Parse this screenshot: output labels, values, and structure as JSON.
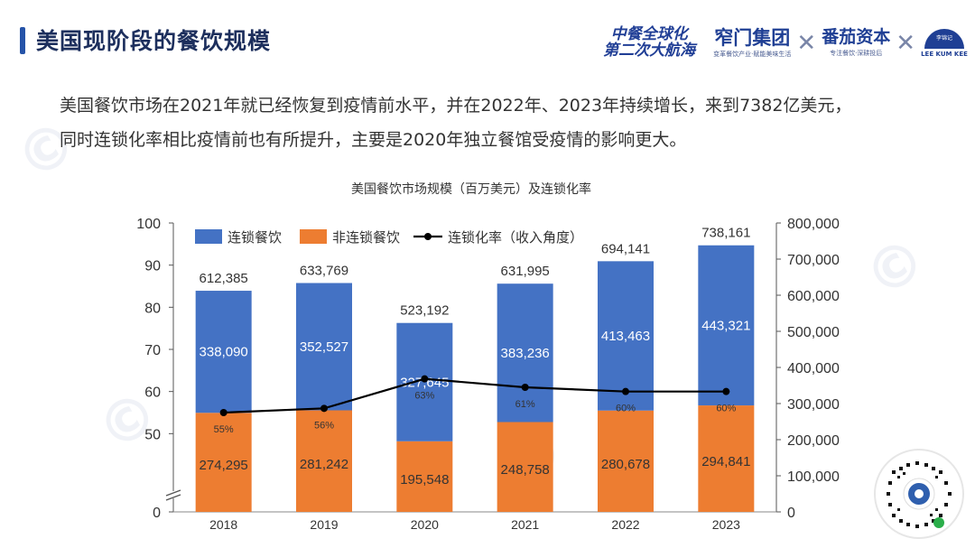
{
  "header": {
    "page_title": "美国现阶段的餐饮规模"
  },
  "logos": {
    "campaign_line1": "中餐全球化",
    "campaign_line2": "第二次大航海",
    "group_name": "窄门集团",
    "group_tagline": "变革餐饮产业·赋能美味生活",
    "separator": "✕",
    "fanqie_name": "番茄资本",
    "fanqie_tagline": "专注餐饮·深耕投后",
    "kk_small": "李锦记",
    "kk_name": "LEE KUM KEE"
  },
  "description": {
    "line1": "美国餐饮市场在2021年就已经恢复到疫情前水平，并在2022年、2023年持续增长，来到7382亿美元，",
    "line2": "同时连锁化率相比疫情前也有所提升，主要是2020年独立餐馆受疫情的影响更大。"
  },
  "chart_data": {
    "type": "bar",
    "stacked": true,
    "title": "美国餐饮市场规模（百万美元）及连锁化率",
    "categories": [
      "2018",
      "2019",
      "2020",
      "2021",
      "2022",
      "2023"
    ],
    "series": [
      {
        "name": "连锁餐饮",
        "type": "bar",
        "axis": "right",
        "color": "#4472c4",
        "values": [
          338090,
          352527,
          327645,
          383236,
          413463,
          443321
        ]
      },
      {
        "name": "非连锁餐饮",
        "type": "bar",
        "axis": "right",
        "color": "#ed7d31",
        "values": [
          274295,
          281242,
          195548,
          248758,
          280678,
          294841
        ]
      },
      {
        "name": "连锁化率（收入角度）",
        "type": "line",
        "axis": "left",
        "color": "#000000",
        "values": [
          55,
          56,
          63,
          61,
          60,
          60
        ],
        "labels": [
          "55%",
          "56%",
          "63%",
          "61%",
          "60%",
          "60%"
        ]
      }
    ],
    "totals": [
      612385,
      633769,
      523192,
      631995,
      694141,
      738161
    ],
    "total_labels": [
      "612,385",
      "633,769",
      "523,192",
      "631,995",
      "694,141",
      "738,161"
    ],
    "chain_labels": [
      "338,090",
      "352,527",
      "327,645",
      "383,236",
      "413,463",
      "443,321"
    ],
    "nonchain_labels": [
      "274,295",
      "281,242",
      "195,548",
      "248,758",
      "280,678",
      "294,841"
    ],
    "left_axis": {
      "ticks": [
        0,
        50,
        60,
        70,
        80,
        90,
        100
      ],
      "tick_labels": [
        "0",
        "50",
        "60",
        "70",
        "80",
        "90",
        "100"
      ],
      "range": [
        40,
        100
      ],
      "axis_break": true
    },
    "right_axis": {
      "ticks": [
        0,
        100000,
        200000,
        300000,
        400000,
        500000,
        600000,
        700000,
        800000
      ],
      "tick_labels": [
        "0",
        "100,000",
        "200,000",
        "300,000",
        "400,000",
        "500,000",
        "600,000",
        "700,000",
        "800,000"
      ],
      "range": [
        0,
        800000
      ]
    },
    "legend_position": "top-left",
    "grid": false
  }
}
